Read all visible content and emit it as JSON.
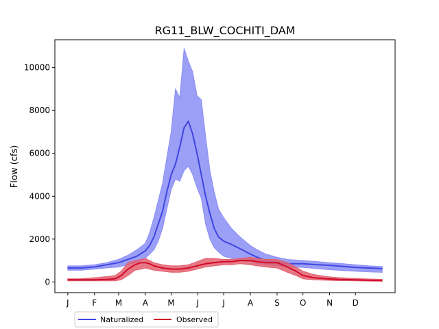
{
  "chart_data": {
    "type": "area",
    "title": "RG11_BLW_COCHITI_DAM",
    "xlabel": "",
    "ylabel": "Flow (cfs)",
    "ylim": [
      -500,
      11300
    ],
    "xlim": [
      -15,
      380
    ],
    "yticks": [
      0,
      2000,
      4000,
      6000,
      8000,
      10000
    ],
    "xticks": [
      {
        "label": "J",
        "day": 0
      },
      {
        "label": "F",
        "day": 31
      },
      {
        "label": "M",
        "day": 59
      },
      {
        "label": "A",
        "day": 90
      },
      {
        "label": "M",
        "day": 120
      },
      {
        "label": "J",
        "day": 151
      },
      {
        "label": "J",
        "day": 181
      },
      {
        "label": "A",
        "day": 212
      },
      {
        "label": "S",
        "day": 243
      },
      {
        "label": "O",
        "day": 273
      },
      {
        "label": "N",
        "day": 304
      },
      {
        "label": "D",
        "day": 334
      }
    ],
    "legend_position": "below-left",
    "grid": false,
    "series": [
      {
        "name": "Naturalized",
        "color": "#4045e0",
        "fill": "#8a8ef5",
        "x": [
          0,
          15,
          31,
          45,
          59,
          70,
          80,
          90,
          95,
          100,
          105,
          110,
          115,
          120,
          125,
          130,
          135,
          140,
          145,
          150,
          155,
          160,
          165,
          170,
          175,
          181,
          190,
          200,
          212,
          220,
          230,
          243,
          255,
          273,
          290,
          304,
          320,
          334,
          350,
          365
        ],
        "median": [
          650,
          650,
          700,
          800,
          900,
          1050,
          1200,
          1450,
          1700,
          2100,
          2700,
          3300,
          4200,
          5000,
          5500,
          6300,
          7200,
          7500,
          6900,
          6000,
          5000,
          4000,
          3200,
          2500,
          2100,
          1900,
          1750,
          1550,
          1300,
          1150,
          1000,
          900,
          850,
          850,
          800,
          780,
          720,
          680,
          650,
          620
        ],
        "upper": [
          750,
          750,
          800,
          900,
          1050,
          1250,
          1500,
          1800,
          2300,
          3000,
          3800,
          4600,
          5800,
          7000,
          9000,
          8600,
          10900,
          10300,
          9800,
          8700,
          8500,
          6800,
          5200,
          4200,
          3400,
          3000,
          2500,
          2100,
          1700,
          1500,
          1300,
          1150,
          1050,
          1000,
          950,
          900,
          850,
          800,
          750,
          720
        ],
        "lower": [
          550,
          550,
          600,
          650,
          700,
          800,
          900,
          1100,
          1300,
          1500,
          1900,
          2500,
          3400,
          4300,
          4800,
          4700,
          5200,
          5400,
          5000,
          4400,
          3900,
          2700,
          2000,
          1600,
          1400,
          1200,
          1100,
          1000,
          950,
          850,
          800,
          750,
          700,
          680,
          620,
          570,
          530,
          500,
          470,
          450
        ]
      },
      {
        "name": "Observed",
        "color": "#d20a2a",
        "fill": "#e2606f",
        "x": [
          0,
          15,
          31,
          45,
          55,
          62,
          70,
          78,
          85,
          90,
          95,
          100,
          110,
          120,
          130,
          140,
          150,
          160,
          170,
          181,
          190,
          200,
          212,
          220,
          230,
          243,
          255,
          265,
          273,
          285,
          300,
          315,
          334,
          350,
          365
        ],
        "median": [
          100,
          100,
          100,
          120,
          150,
          300,
          600,
          800,
          900,
          900,
          850,
          750,
          650,
          600,
          600,
          650,
          750,
          850,
          900,
          950,
          950,
          1000,
          1000,
          950,
          900,
          900,
          700,
          500,
          300,
          200,
          150,
          120,
          100,
          80,
          70
        ],
        "upper": [
          150,
          150,
          200,
          250,
          300,
          500,
          900,
          1000,
          1050,
          1100,
          1000,
          900,
          800,
          750,
          750,
          800,
          950,
          1100,
          1100,
          1050,
          1050,
          1100,
          1150,
          1100,
          1050,
          1050,
          900,
          700,
          500,
          350,
          250,
          200,
          160,
          140,
          120
        ],
        "lower": [
          50,
          50,
          50,
          50,
          50,
          100,
          300,
          550,
          600,
          650,
          600,
          550,
          500,
          450,
          450,
          500,
          600,
          700,
          750,
          800,
          800,
          850,
          800,
          750,
          700,
          650,
          450,
          300,
          150,
          100,
          80,
          60,
          50,
          40,
          30
        ]
      }
    ]
  }
}
